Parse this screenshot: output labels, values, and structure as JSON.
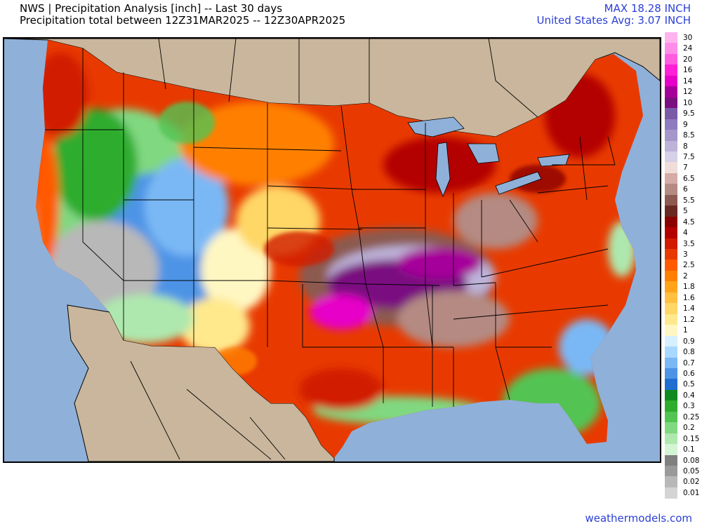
{
  "header": {
    "title_line1": "NWS | Precipitation Analysis [inch] -- Last 30 days",
    "title_line2": "Precipitation total between 12Z31MAR2025 -- 12Z30APR2025",
    "max_label": "MAX 18.28 INCH",
    "avg_label": "United States Avg: 3.07 INCH"
  },
  "legend": {
    "items": [
      {
        "label": "30",
        "color": "#ffb3f0"
      },
      {
        "label": "24",
        "color": "#ff8ce8"
      },
      {
        "label": "20",
        "color": "#ff5ce0"
      },
      {
        "label": "16",
        "color": "#ff1fd6"
      },
      {
        "label": "14",
        "color": "#e600c8"
      },
      {
        "label": "12",
        "color": "#a6009a"
      },
      {
        "label": "10",
        "color": "#7a0f80"
      },
      {
        "label": "9.5",
        "color": "#7b5aa8"
      },
      {
        "label": "9",
        "color": "#8f7bbf"
      },
      {
        "label": "8.5",
        "color": "#a596cc"
      },
      {
        "label": "8",
        "color": "#bdb3d9"
      },
      {
        "label": "7.5",
        "color": "#d6d0e8"
      },
      {
        "label": "7",
        "color": "#f0dcd8"
      },
      {
        "label": "6.5",
        "color": "#d4aba5"
      },
      {
        "label": "6",
        "color": "#b48a82"
      },
      {
        "label": "5.5",
        "color": "#8c5a50"
      },
      {
        "label": "5",
        "color": "#6a2a22"
      },
      {
        "label": "4.5",
        "color": "#8b0000"
      },
      {
        "label": "4",
        "color": "#b30000"
      },
      {
        "label": "3.5",
        "color": "#d11a00"
      },
      {
        "label": "3",
        "color": "#e83a00"
      },
      {
        "label": "2.5",
        "color": "#ff5a00"
      },
      {
        "label": "2",
        "color": "#ff8000"
      },
      {
        "label": "1.8",
        "color": "#ffa31a"
      },
      {
        "label": "1.6",
        "color": "#ffbf40"
      },
      {
        "label": "1.4",
        "color": "#ffd766"
      },
      {
        "label": "1.2",
        "color": "#ffe98c"
      },
      {
        "label": "1",
        "color": "#fff7c2"
      },
      {
        "label": "0.9",
        "color": "#d6f0ff"
      },
      {
        "label": "0.8",
        "color": "#a8d8ff"
      },
      {
        "label": "0.7",
        "color": "#7ab8f5"
      },
      {
        "label": "0.6",
        "color": "#4d94e6"
      },
      {
        "label": "0.5",
        "color": "#1f6fd1"
      },
      {
        "label": "0.4",
        "color": "#0f8a1f"
      },
      {
        "label": "0.3",
        "color": "#2eac2e"
      },
      {
        "label": "0.25",
        "color": "#52c452"
      },
      {
        "label": "0.2",
        "color": "#80d880"
      },
      {
        "label": "0.15",
        "color": "#aee8ae"
      },
      {
        "label": "0.1",
        "color": "#d4f5d4"
      },
      {
        "label": "0.08",
        "color": "#808080"
      },
      {
        "label": "0.05",
        "color": "#9a9a9a"
      },
      {
        "label": "0.02",
        "color": "#b8b8b8"
      },
      {
        "label": "0.01",
        "color": "#d4d4d4"
      }
    ]
  },
  "map": {
    "ocean_color": "#8fb0d8",
    "land_outside_color": "#c9b69c"
  },
  "footer": {
    "credit": "weathermodels.com"
  }
}
